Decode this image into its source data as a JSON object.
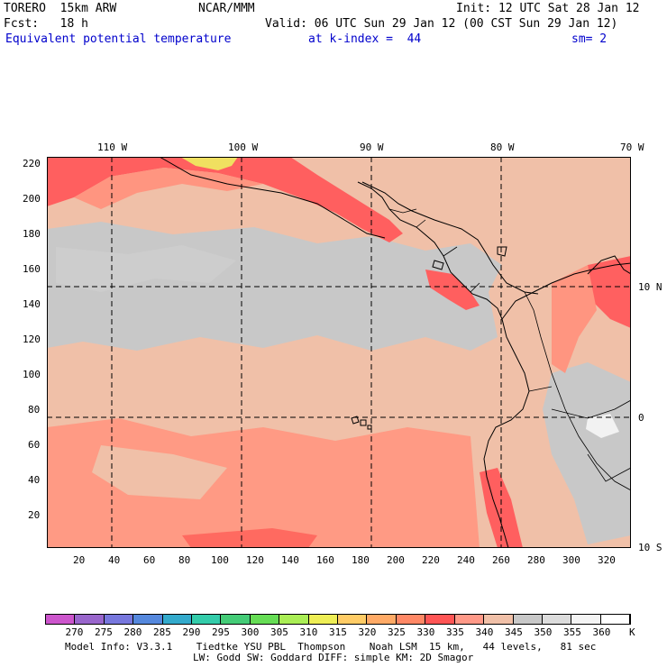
{
  "header": {
    "model": "TORERO  15km ARW",
    "center": "NCAR/MMM",
    "init": "Init: 12 UTC Sat 28 Jan 12",
    "fcst": "Fcst:   18 h",
    "valid": "Valid: 06 UTC Sun 29 Jan 12 (00 CST Sun 29 Jan 12)",
    "field": "Equivalent potential temperature",
    "level": "at k-index =  44",
    "smooth": "sm= 2"
  },
  "map": {
    "lon_labels": [
      "110 W",
      "100 W",
      "90 W",
      "80 W",
      "70 W"
    ],
    "lat_labels": [
      "10 N",
      "0",
      "10 S"
    ],
    "y_ticks": [
      "220",
      "200",
      "180",
      "160",
      "140",
      "120",
      "100",
      "80",
      "60",
      "40",
      "20"
    ],
    "x_ticks": [
      "20",
      "40",
      "60",
      "80",
      "100",
      "120",
      "140",
      "160",
      "180",
      "200",
      "220",
      "240",
      "260",
      "280",
      "300",
      "320"
    ]
  },
  "colorbar": {
    "levels": [
      "270",
      "275",
      "280",
      "285",
      "290",
      "295",
      "300",
      "305",
      "310",
      "315",
      "320",
      "325",
      "330",
      "335",
      "340",
      "345",
      "350",
      "355",
      "360"
    ],
    "unit": "K",
    "colors": [
      "#cc55cc",
      "#9966cc",
      "#7777dd",
      "#5588dd",
      "#33aacc",
      "#33ccaa",
      "#44cc77",
      "#66dd55",
      "#aaee55",
      "#eeee55",
      "#ffcc66",
      "#ffaa66",
      "#ff8866",
      "#ff5555",
      "#ff9988",
      "#f0c0a8",
      "#c8c8c8",
      "#dcdcdc",
      "#f4f4f4",
      "#ffffff"
    ]
  },
  "footer": {
    "line1": "Model Info: V3.3.1    Tiedtke YSU PBL  Thompson    Noah LSM  15 km,   44 levels,   81 sec",
    "line2": "LW: Godd SW: Goddard DIFF: simple KM: 2D Smagor"
  }
}
